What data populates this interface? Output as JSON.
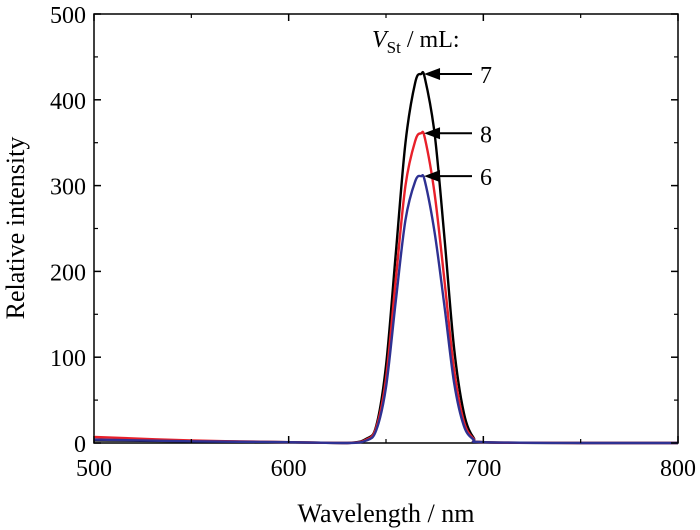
{
  "chart_data": {
    "type": "line",
    "xlabel": "Wavelength / nm",
    "ylabel": "Relative intensity",
    "xlim": [
      500,
      800
    ],
    "ylim": [
      0,
      500
    ],
    "xticks": [
      500,
      600,
      700,
      800
    ],
    "yticks": [
      0,
      100,
      200,
      300,
      400,
      500
    ],
    "legend_title": {
      "var": "V",
      "sub": "St",
      "rest": " / mL:"
    },
    "series": [
      {
        "name": "7",
        "color": "#000000",
        "x": [
          500,
          550,
          600,
          630,
          640,
          645,
          650,
          655,
          660,
          665,
          668,
          670,
          675,
          680,
          685,
          690,
          695,
          700,
          750,
          800
        ],
        "y": [
          3,
          2,
          1,
          0,
          5,
          20,
          90,
          220,
          350,
          420,
          430,
          425,
          360,
          240,
          110,
          35,
          6,
          1,
          0,
          0
        ]
      },
      {
        "name": "8",
        "color": "#e8202a",
        "x": [
          500,
          550,
          600,
          630,
          640,
          645,
          650,
          655,
          660,
          665,
          668,
          670,
          675,
          680,
          685,
          690,
          695,
          700,
          750,
          800
        ],
        "y": [
          7,
          3,
          1,
          0,
          4,
          18,
          75,
          190,
          300,
          352,
          361,
          355,
          290,
          190,
          85,
          25,
          5,
          1,
          0,
          0
        ]
      },
      {
        "name": "6",
        "color": "#2e3192",
        "x": [
          500,
          550,
          600,
          630,
          640,
          645,
          650,
          655,
          660,
          665,
          668,
          670,
          675,
          680,
          685,
          690,
          695,
          700,
          750,
          800
        ],
        "y": [
          4,
          2,
          1,
          0,
          3,
          15,
          65,
          165,
          260,
          305,
          311,
          305,
          245,
          160,
          70,
          20,
          4,
          1,
          0,
          0
        ]
      }
    ]
  }
}
